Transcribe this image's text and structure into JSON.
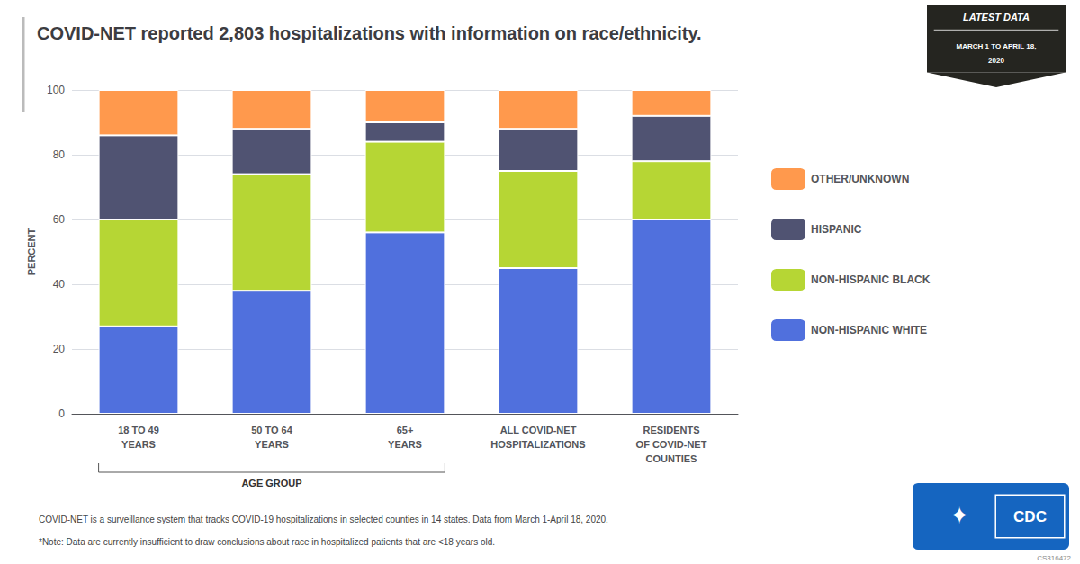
{
  "chart_data": {
    "type": "bar",
    "title": "COVID-NET reported 2,803 hospitalizations with information on race/ethnicity.",
    "ylabel": "PERCENT",
    "categories": [
      "18 TO 49\nYEARS",
      "50 TO 64\nYEARS",
      "65+\nYEARS",
      "ALL COVID-NET\nHOSPITALIZATIONS",
      "RESIDENTS\nOF COVID-NET\nCOUNTIES"
    ],
    "series": [
      {
        "name": "NON-HISPANIC WHITE",
        "values": [
          27,
          38,
          56,
          45,
          60
        ]
      },
      {
        "name": "NON-HISPANIC BLACK",
        "values": [
          33,
          36,
          28,
          30,
          18
        ]
      },
      {
        "name": "HISPANIC",
        "values": [
          26,
          14,
          6,
          13,
          14
        ]
      },
      {
        "name": "OTHER/UNKNOWN",
        "values": [
          14,
          12,
          10,
          12,
          8
        ]
      }
    ],
    "stacked": true,
    "ylim": [
      0,
      100
    ],
    "yticks": [
      0,
      20,
      40,
      60,
      80,
      100
    ],
    "grid": true,
    "legend": "right",
    "annotations": [
      "AGE GROUP",
      "COVID-NET is a surveillance system that tracks COVID-19 hospitalizations in selected counties in 14 states. Data from March 1-April 18, 2020.",
      "*Note: Data are currently insufficient to draw conclusions about race in hospitalized patients that are <18 years old.",
      "LATEST DATA",
      "MARCH 1 TO APRIL 18,",
      "2020",
      "✦",
      "CDC",
      "CS316472"
    ]
  }
}
